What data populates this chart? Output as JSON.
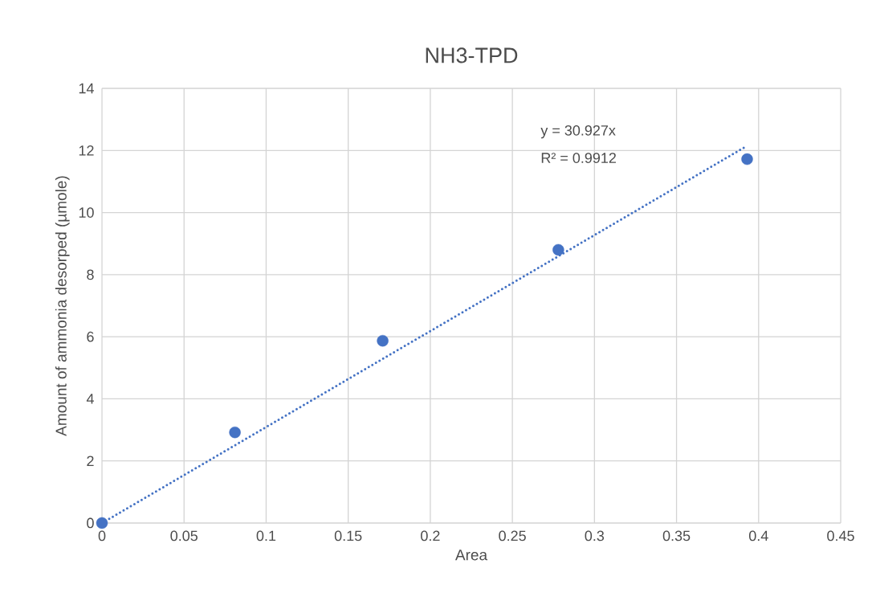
{
  "chart_data": {
    "type": "scatter",
    "title": "NH3-TPD",
    "xlabel": "Area",
    "ylabel": "Amount of ammonia desorped (µmole)",
    "annotations": [
      "y = 30.927x",
      "R² = 0.9912"
    ],
    "series": [
      {
        "color": "#4472c4",
        "marker": "circle",
        "x": [
          0,
          0.081,
          0.171,
          0.278,
          0.393
        ],
        "values": [
          0,
          2.92,
          5.87,
          8.8,
          11.72
        ]
      },
      {
        "type": "line",
        "color": "#4472c4",
        "marker": "none",
        "line_style": "dotted",
        "x": [
          0,
          0.393
        ],
        "values": [
          0,
          12.15
        ]
      }
    ],
    "xlim": [
      0,
      0.45
    ],
    "ylim": [
      0,
      14
    ],
    "xticks": [
      0,
      0.05,
      0.1,
      0.15,
      0.2,
      0.25,
      0.3,
      0.35,
      0.4,
      0.45
    ],
    "yticks": [
      0,
      2,
      4,
      6,
      8,
      10,
      12,
      14
    ],
    "grid": true
  }
}
